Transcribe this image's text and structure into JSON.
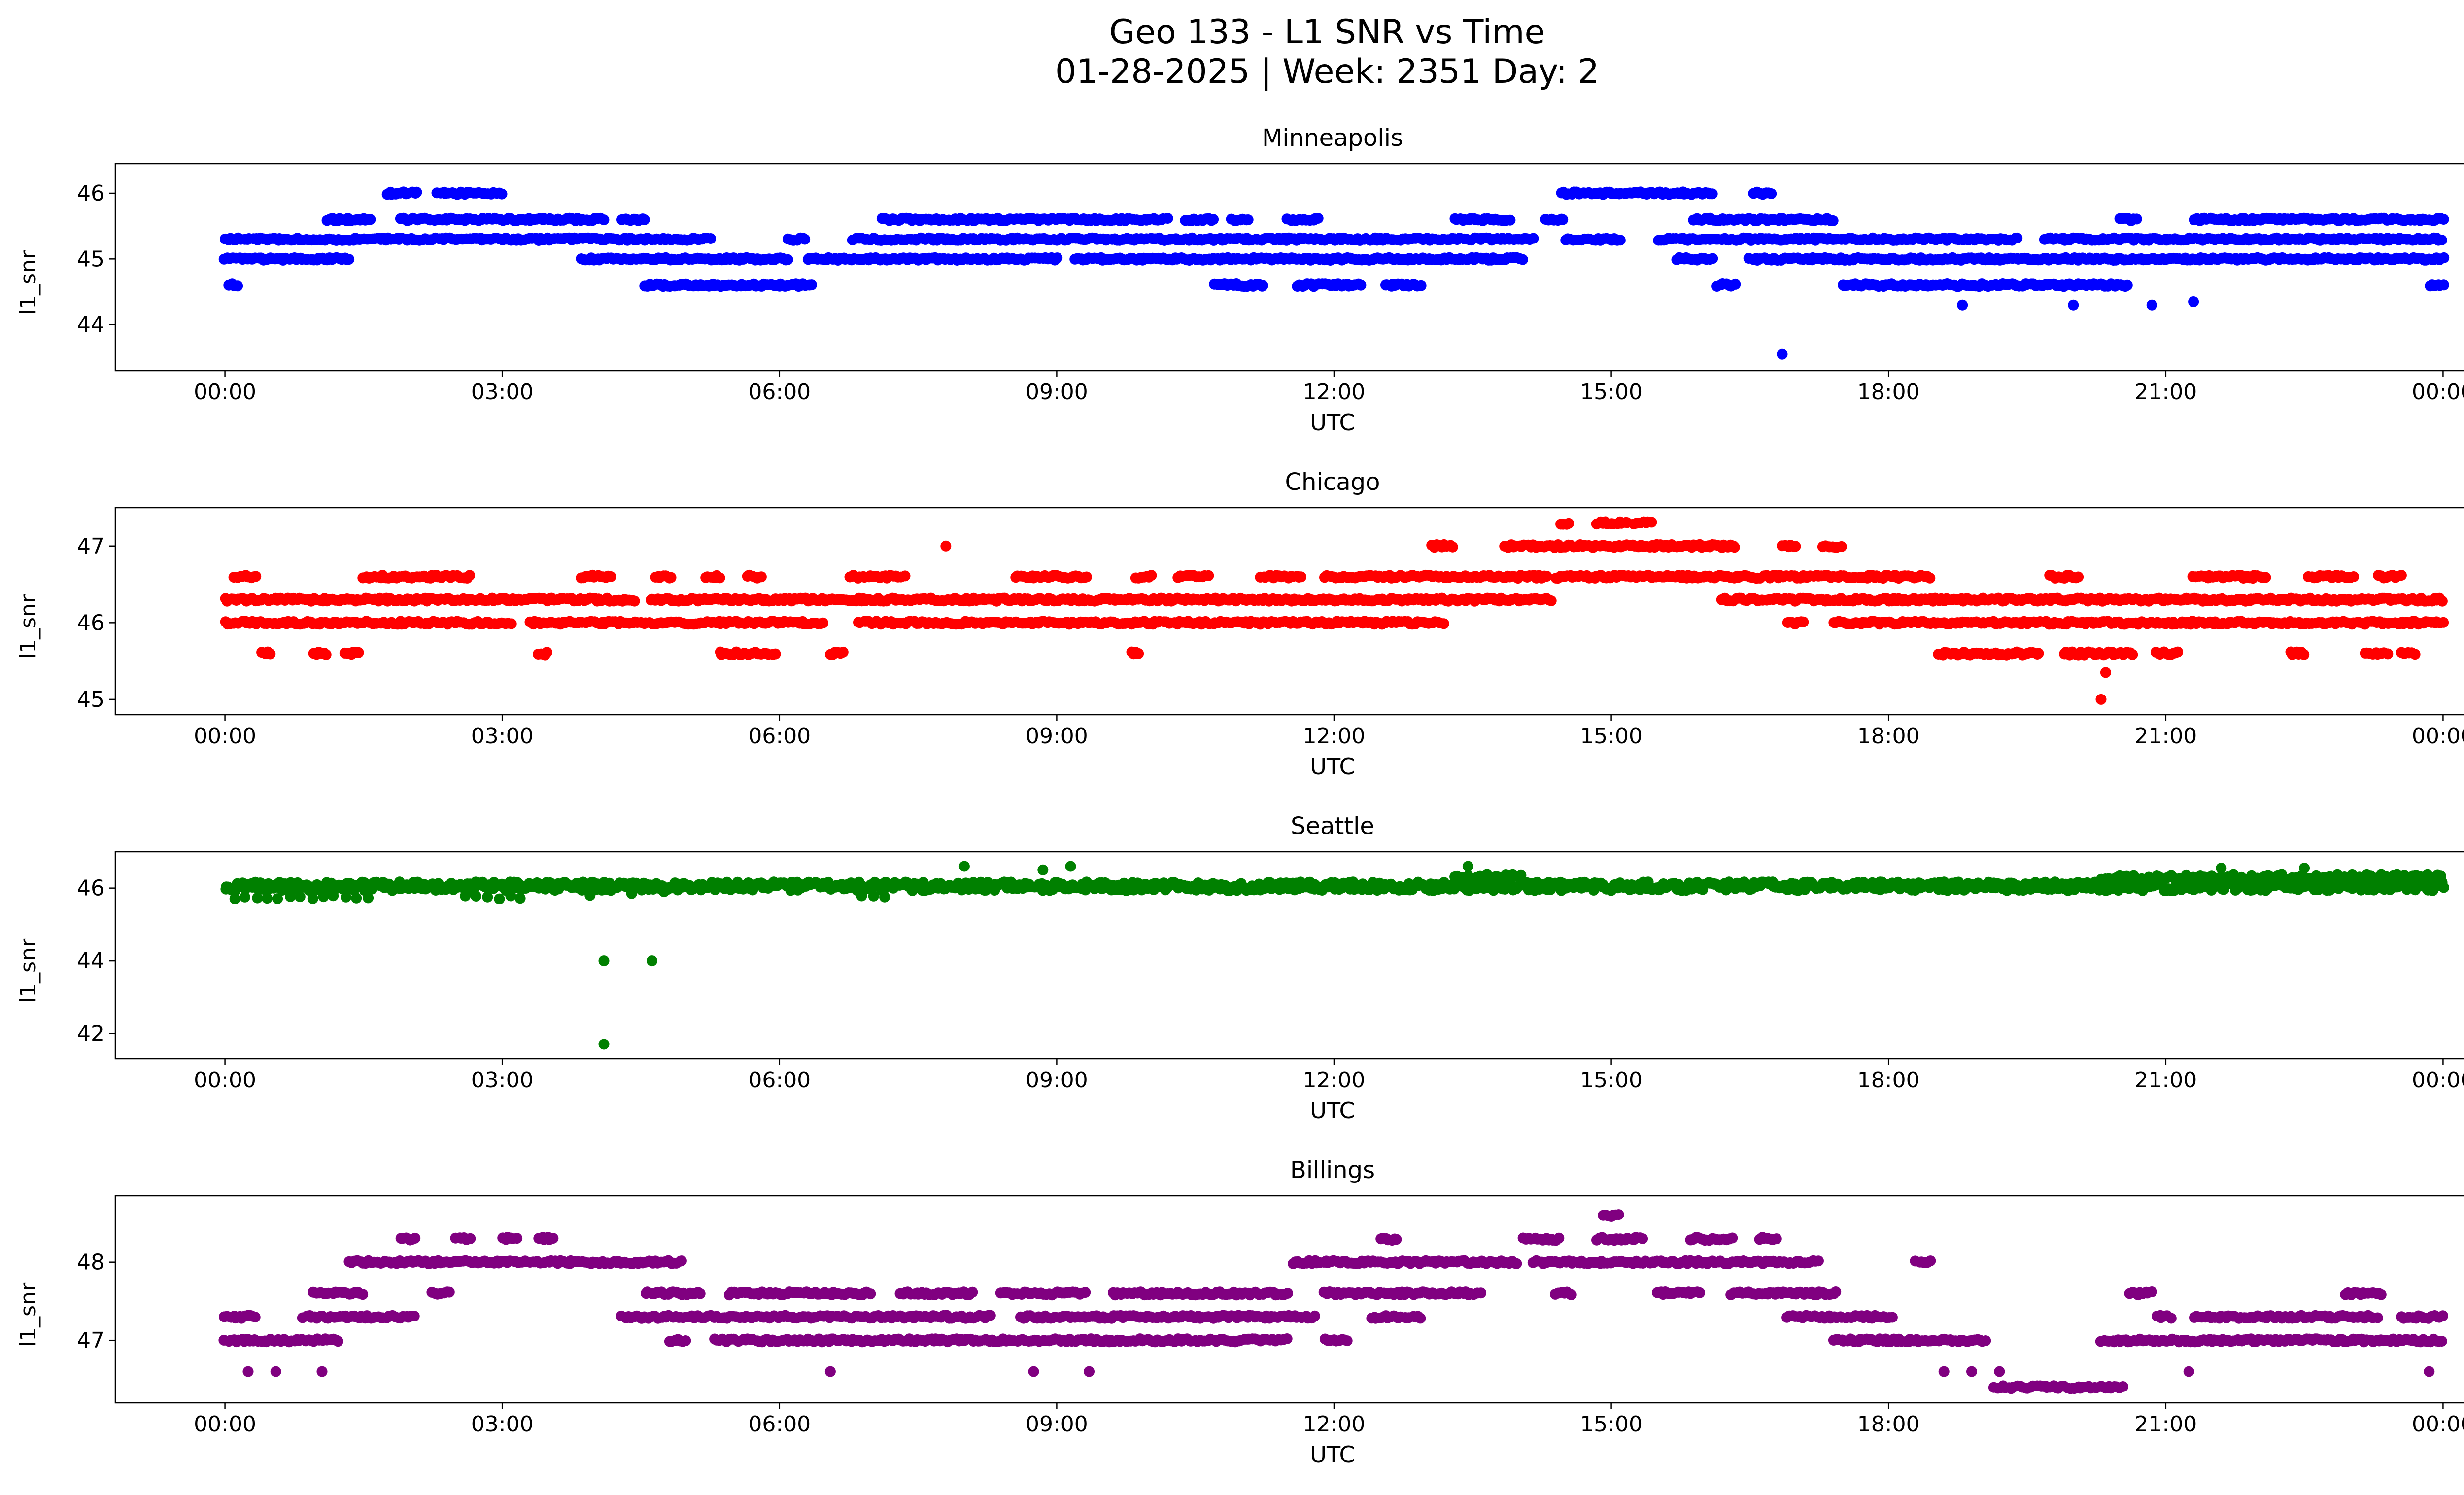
{
  "header": {
    "title_line1": "Geo 133 - L1 SNR vs Time",
    "title_line2": "01-28-2025 | Week: 2351 Day: 2"
  },
  "chart_data": [
    {
      "type": "scatter",
      "title": "Minneapolis",
      "color": "#0000ff",
      "xlabel": "UTC",
      "ylabel": "l1_snr",
      "x_ticks": [
        "00:00",
        "03:00",
        "06:00",
        "09:00",
        "12:00",
        "15:00",
        "18:00",
        "21:00",
        "00:00"
      ],
      "x_tick_hours": [
        0,
        3,
        6,
        9,
        12,
        15,
        18,
        21,
        24
      ],
      "y_ticks": [
        44,
        45,
        46
      ],
      "ylim": [
        43.3,
        46.45
      ],
      "xlim_hours": [
        0,
        24
      ],
      "bands": [
        {
          "y": 46.0,
          "segments": [
            [
              1.75,
              2.1
            ],
            [
              2.3,
              3.0
            ],
            [
              14.45,
              16.1
            ],
            [
              16.55,
              16.75
            ]
          ]
        },
        {
          "y": 45.6,
          "segments": [
            [
              1.1,
              1.6
            ],
            [
              1.9,
              4.1
            ],
            [
              4.3,
              4.55
            ],
            [
              7.1,
              10.2
            ],
            [
              10.4,
              10.7
            ],
            [
              10.9,
              11.1
            ],
            [
              11.5,
              11.85
            ],
            [
              13.3,
              13.9
            ],
            [
              14.3,
              14.5
            ],
            [
              15.9,
              17.4
            ],
            [
              20.5,
              20.7
            ],
            [
              21.3,
              24.0
            ]
          ]
        },
        {
          "y": 45.3,
          "segments": [
            [
              0.0,
              5.25
            ],
            [
              6.1,
              6.3
            ],
            [
              6.8,
              14.15
            ],
            [
              14.5,
              15.1
            ],
            [
              15.5,
              19.4
            ],
            [
              19.7,
              24.0
            ]
          ]
        },
        {
          "y": 45.0,
          "segments": [
            [
              0.0,
              1.35
            ],
            [
              3.85,
              6.1
            ],
            [
              6.3,
              9.0
            ],
            [
              9.2,
              14.05
            ],
            [
              15.7,
              16.1
            ],
            [
              16.5,
              24.0
            ]
          ]
        },
        {
          "y": 44.6,
          "segments": [
            [
              0.05,
              0.15
            ],
            [
              4.55,
              6.35
            ],
            [
              10.7,
              11.25
            ],
            [
              11.6,
              12.3
            ],
            [
              12.55,
              12.95
            ],
            [
              16.15,
              16.35
            ],
            [
              17.5,
              20.6
            ],
            [
              23.85,
              24.0
            ]
          ]
        }
      ],
      "points": [
        [
          16.85,
          43.55
        ],
        [
          18.8,
          44.3
        ],
        [
          20.0,
          44.3
        ],
        [
          20.85,
          44.3
        ],
        [
          21.3,
          44.35
        ]
      ]
    },
    {
      "type": "scatter",
      "title": "Chicago",
      "color": "#ff0000",
      "xlabel": "UTC",
      "ylabel": "l1_snr",
      "x_ticks": [
        "00:00",
        "03:00",
        "06:00",
        "09:00",
        "12:00",
        "15:00",
        "18:00",
        "21:00",
        "00:00"
      ],
      "x_tick_hours": [
        0,
        3,
        6,
        9,
        12,
        15,
        18,
        21,
        24
      ],
      "y_ticks": [
        45,
        46,
        47
      ],
      "ylim": [
        44.8,
        47.5
      ],
      "xlim_hours": [
        0,
        24
      ],
      "bands": [
        {
          "y": 47.3,
          "segments": [
            [
              14.45,
              14.55
            ],
            [
              14.85,
              15.2
            ],
            [
              15.25,
              15.45
            ]
          ]
        },
        {
          "y": 47.0,
          "segments": [
            [
              13.05,
              13.3
            ],
            [
              13.85,
              16.35
            ],
            [
              16.85,
              17.0
            ],
            [
              17.3,
              17.5
            ]
          ]
        },
        {
          "y": 46.6,
          "segments": [
            [
              0.1,
              0.35
            ],
            [
              1.5,
              2.65
            ],
            [
              3.85,
              4.2
            ],
            [
              4.65,
              4.85
            ],
            [
              5.2,
              5.35
            ],
            [
              5.65,
              5.8
            ],
            [
              6.75,
              7.35
            ],
            [
              8.55,
              9.35
            ],
            [
              9.85,
              10.05
            ],
            [
              10.3,
              10.65
            ],
            [
              11.2,
              11.65
            ],
            [
              11.9,
              14.3
            ],
            [
              14.4,
              18.45
            ],
            [
              19.75,
              20.05
            ],
            [
              21.3,
              22.1
            ],
            [
              22.55,
              23.05
            ],
            [
              23.3,
              23.55
            ]
          ]
        },
        {
          "y": 46.3,
          "segments": [
            [
              0.0,
              4.45
            ],
            [
              4.6,
              14.35
            ],
            [
              16.2,
              24.0
            ]
          ]
        },
        {
          "y": 46.0,
          "segments": [
            [
              0.0,
              3.1
            ],
            [
              3.3,
              6.5
            ],
            [
              6.85,
              13.2
            ],
            [
              16.9,
              17.1
            ],
            [
              17.4,
              24.0
            ]
          ]
        },
        {
          "y": 45.6,
          "segments": [
            [
              0.4,
              0.5
            ],
            [
              0.95,
              1.1
            ],
            [
              1.3,
              1.45
            ],
            [
              3.4,
              3.5
            ],
            [
              5.35,
              5.95
            ],
            [
              6.55,
              6.7
            ],
            [
              9.8,
              9.9
            ],
            [
              18.55,
              19.65
            ],
            [
              19.9,
              20.65
            ],
            [
              20.9,
              21.15
            ],
            [
              22.35,
              22.5
            ],
            [
              23.15,
              23.4
            ],
            [
              23.55,
              23.7
            ]
          ]
        }
      ],
      "points": [
        [
          7.8,
          47.0
        ],
        [
          20.3,
          45.0
        ],
        [
          20.35,
          45.35
        ]
      ]
    },
    {
      "type": "scatter",
      "title": "Seattle",
      "color": "#008000",
      "xlabel": "UTC",
      "ylabel": "l1_snr",
      "x_ticks": [
        "00:00",
        "03:00",
        "06:00",
        "09:00",
        "12:00",
        "15:00",
        "18:00",
        "21:00",
        "00:00"
      ],
      "x_tick_hours": [
        0,
        3,
        6,
        9,
        12,
        15,
        18,
        21,
        24
      ],
      "y_ticks": [
        42,
        44,
        46
      ],
      "ylim": [
        41.3,
        47.0
      ],
      "xlim_hours": [
        0,
        24
      ],
      "bands": [
        {
          "y": 46.05,
          "jitter": 0.12,
          "step": 0.02,
          "segments": [
            [
              0.0,
              24.0
            ]
          ]
        },
        {
          "y": 46.3,
          "jitter": 0.07,
          "step": 0.04,
          "segments": [
            [
              13.3,
              14.05
            ],
            [
              20.3,
              24.0
            ]
          ]
        },
        {
          "y": 45.75,
          "jitter": 0.05,
          "step": 0.12,
          "segments": [
            [
              0.1,
              1.6
            ],
            [
              2.6,
              3.2
            ],
            [
              6.9,
              7.15
            ]
          ]
        }
      ],
      "points": [
        [
          4.1,
          44.0
        ],
        [
          4.62,
          44.0
        ],
        [
          4.1,
          41.7
        ],
        [
          3.95,
          45.8
        ],
        [
          4.4,
          45.85
        ],
        [
          4.75,
          45.9
        ],
        [
          8.0,
          46.6
        ],
        [
          8.85,
          46.5
        ],
        [
          9.15,
          46.6
        ],
        [
          13.45,
          46.6
        ],
        [
          21.6,
          46.55
        ],
        [
          22.5,
          46.55
        ]
      ]
    },
    {
      "type": "scatter",
      "title": "Billings",
      "color": "#800080",
      "xlabel": "UTC",
      "ylabel": "l1_snr",
      "x_ticks": [
        "00:00",
        "03:00",
        "06:00",
        "09:00",
        "12:00",
        "15:00",
        "18:00",
        "21:00",
        "00:00"
      ],
      "x_tick_hours": [
        0,
        3,
        6,
        9,
        12,
        15,
        18,
        21,
        24
      ],
      "y_ticks": [
        47,
        48
      ],
      "ylim": [
        46.2,
        48.85
      ],
      "xlim_hours": [
        0,
        24
      ],
      "bands": [
        {
          "y": 48.6,
          "segments": [
            [
              14.9,
              15.1
            ]
          ]
        },
        {
          "y": 48.3,
          "segments": [
            [
              1.9,
              2.05
            ],
            [
              2.5,
              2.65
            ],
            [
              3.0,
              3.15
            ],
            [
              3.4,
              3.55
            ],
            [
              12.5,
              12.7
            ],
            [
              14.05,
              14.45
            ],
            [
              14.85,
              15.35
            ],
            [
              15.85,
              16.3
            ],
            [
              16.6,
              16.8
            ]
          ]
        },
        {
          "y": 48.0,
          "segments": [
            [
              1.35,
              4.95
            ],
            [
              11.55,
              14.0
            ],
            [
              14.15,
              17.25
            ],
            [
              18.3,
              18.45
            ]
          ]
        },
        {
          "y": 47.6,
          "segments": [
            [
              0.95,
              1.5
            ],
            [
              2.25,
              2.45
            ],
            [
              4.55,
              5.15
            ],
            [
              5.45,
              7.0
            ],
            [
              7.3,
              8.1
            ],
            [
              8.4,
              9.3
            ],
            [
              9.6,
              11.5
            ],
            [
              11.9,
              13.6
            ],
            [
              14.4,
              14.6
            ],
            [
              15.5,
              15.95
            ],
            [
              16.3,
              17.45
            ],
            [
              20.6,
              20.85
            ],
            [
              22.95,
              23.35
            ]
          ]
        },
        {
          "y": 47.3,
          "segments": [
            [
              0.0,
              0.35
            ],
            [
              0.85,
              2.05
            ],
            [
              4.3,
              8.3
            ],
            [
              8.6,
              11.8
            ],
            [
              12.4,
              12.95
            ],
            [
              16.9,
              18.05
            ],
            [
              20.9,
              21.05
            ],
            [
              21.3,
              23.3
            ],
            [
              23.55,
              24.0
            ]
          ]
        },
        {
          "y": 47.0,
          "segments": [
            [
              0.0,
              1.25
            ],
            [
              4.8,
              5.0
            ],
            [
              5.3,
              11.5
            ],
            [
              11.9,
              12.15
            ],
            [
              17.4,
              19.05
            ],
            [
              20.3,
              24.0
            ]
          ]
        },
        {
          "y": 46.4,
          "segments": [
            [
              19.15,
              20.55
            ]
          ]
        }
      ],
      "points": [
        [
          0.25,
          46.6
        ],
        [
          0.55,
          46.6
        ],
        [
          1.05,
          46.6
        ],
        [
          6.55,
          46.6
        ],
        [
          8.75,
          46.6
        ],
        [
          9.35,
          46.6
        ],
        [
          18.6,
          46.6
        ],
        [
          18.9,
          46.6
        ],
        [
          19.2,
          46.6
        ],
        [
          21.25,
          46.6
        ],
        [
          23.85,
          46.6
        ],
        [
          14.95,
          48.6
        ]
      ]
    }
  ]
}
